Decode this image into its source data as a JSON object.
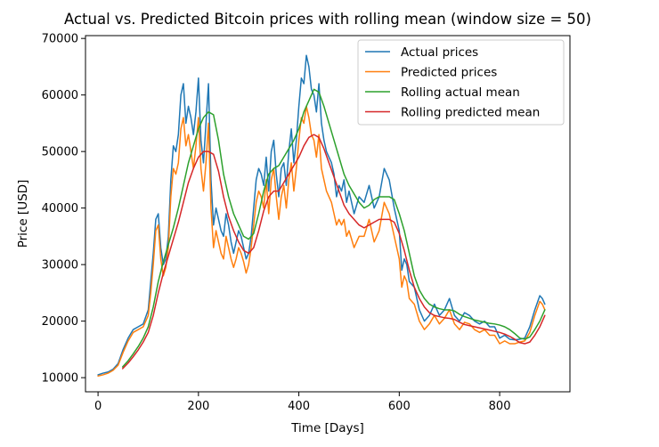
{
  "chart_data": {
    "type": "line",
    "title": "Actual vs. Predicted Bitcoin prices with rolling mean (window size = 50)",
    "xlabel": "Time [Days]",
    "ylabel": "Price [USD]",
    "xlim": [
      -25,
      940
    ],
    "ylim": [
      7500,
      70500
    ],
    "xticks": [
      0,
      200,
      400,
      600,
      800
    ],
    "yticks": [
      10000,
      20000,
      30000,
      40000,
      50000,
      60000,
      70000
    ],
    "grid": false,
    "legend_position": "top-right",
    "series": [
      {
        "name": "Actual prices",
        "color": "#1f77b4",
        "x": [
          0,
          10,
          20,
          30,
          40,
          50,
          60,
          70,
          80,
          90,
          100,
          105,
          110,
          115,
          120,
          125,
          130,
          135,
          140,
          145,
          150,
          155,
          160,
          165,
          170,
          175,
          180,
          185,
          190,
          195,
          200,
          205,
          210,
          215,
          220,
          225,
          230,
          235,
          240,
          245,
          250,
          255,
          260,
          265,
          270,
          275,
          280,
          285,
          290,
          295,
          300,
          305,
          310,
          315,
          320,
          325,
          330,
          335,
          340,
          345,
          350,
          355,
          360,
          365,
          370,
          375,
          380,
          385,
          390,
          395,
          400,
          405,
          410,
          415,
          420,
          425,
          430,
          435,
          440,
          445,
          450,
          455,
          460,
          465,
          470,
          475,
          480,
          485,
          490,
          495,
          500,
          510,
          520,
          530,
          540,
          550,
          560,
          570,
          580,
          590,
          600,
          605,
          610,
          615,
          620,
          630,
          640,
          650,
          660,
          670,
          680,
          690,
          700,
          710,
          720,
          730,
          740,
          750,
          760,
          770,
          780,
          790,
          800,
          810,
          820,
          830,
          840,
          850,
          860,
          870,
          880,
          885,
          890
        ],
        "y": [
          10500,
          10800,
          11000,
          11500,
          12500,
          15000,
          17000,
          18500,
          19000,
          19500,
          22000,
          27000,
          32000,
          38000,
          39000,
          33000,
          30000,
          31000,
          35000,
          45000,
          51000,
          50000,
          53000,
          60000,
          62000,
          55000,
          58000,
          56000,
          53000,
          57000,
          63000,
          52000,
          48000,
          55000,
          62000,
          45000,
          37000,
          40000,
          38000,
          36000,
          35000,
          39000,
          37000,
          34000,
          32000,
          34000,
          36000,
          35000,
          33000,
          31000,
          32000,
          35000,
          40000,
          45000,
          47000,
          46000,
          44000,
          49000,
          43000,
          50000,
          52000,
          46000,
          42000,
          47000,
          48000,
          44000,
          50000,
          54000,
          48000,
          52000,
          58000,
          63000,
          62000,
          67000,
          65000,
          61000,
          60000,
          57000,
          62000,
          55000,
          52000,
          50000,
          49000,
          48000,
          46000,
          42000,
          44000,
          43000,
          45000,
          41000,
          43000,
          39000,
          42000,
          41000,
          44000,
          40000,
          42000,
          47000,
          45000,
          40000,
          36000,
          29000,
          31000,
          30000,
          27000,
          26000,
          22000,
          20000,
          21000,
          23000,
          21000,
          22000,
          24000,
          21000,
          20000,
          21500,
          21000,
          20000,
          19500,
          20000,
          19000,
          19000,
          17000,
          17500,
          16800,
          16700,
          16800,
          17000,
          19000,
          22000,
          24500,
          24000,
          23000
        ]
      },
      {
        "name": "Predicted prices",
        "color": "#ff7f0e",
        "x": [
          0,
          10,
          20,
          30,
          40,
          50,
          60,
          70,
          80,
          90,
          100,
          105,
          110,
          115,
          120,
          125,
          130,
          135,
          140,
          145,
          150,
          155,
          160,
          165,
          170,
          175,
          180,
          185,
          190,
          195,
          200,
          205,
          210,
          215,
          220,
          225,
          230,
          235,
          240,
          245,
          250,
          255,
          260,
          265,
          270,
          275,
          280,
          285,
          290,
          295,
          300,
          305,
          310,
          315,
          320,
          325,
          330,
          335,
          340,
          345,
          350,
          355,
          360,
          365,
          370,
          375,
          380,
          385,
          390,
          395,
          400,
          405,
          410,
          415,
          420,
          425,
          430,
          435,
          440,
          445,
          450,
          455,
          460,
          465,
          470,
          475,
          480,
          485,
          490,
          495,
          500,
          510,
          520,
          530,
          540,
          550,
          560,
          570,
          580,
          590,
          600,
          605,
          610,
          615,
          620,
          630,
          640,
          650,
          660,
          670,
          680,
          690,
          700,
          710,
          720,
          730,
          740,
          750,
          760,
          770,
          780,
          790,
          800,
          810,
          820,
          830,
          840,
          850,
          860,
          870,
          880,
          885,
          890
        ],
        "y": [
          10300,
          10500,
          10800,
          11300,
          12200,
          14500,
          16500,
          18000,
          18500,
          19000,
          21000,
          25000,
          30000,
          36000,
          37000,
          31000,
          28000,
          29500,
          33000,
          42000,
          47000,
          46000,
          48000,
          54000,
          56000,
          51000,
          53000,
          50000,
          47000,
          51000,
          56000,
          47000,
          43000,
          48000,
          55000,
          40000,
          33000,
          36000,
          34000,
          32000,
          31000,
          35000,
          33000,
          31000,
          29500,
          31000,
          33000,
          32000,
          30500,
          28500,
          30000,
          33000,
          37000,
          41000,
          43000,
          42000,
          40000,
          45000,
          39000,
          45000,
          47000,
          42000,
          38000,
          42000,
          44000,
          40000,
          45000,
          48000,
          43000,
          47000,
          52000,
          56000,
          55000,
          58000,
          56000,
          53000,
          52000,
          49000,
          53000,
          47000,
          45000,
          43000,
          42000,
          41000,
          39000,
          37000,
          38000,
          37000,
          38000,
          35000,
          36000,
          33000,
          35000,
          35000,
          38000,
          34000,
          36000,
          41000,
          39000,
          35000,
          31000,
          26000,
          28000,
          27000,
          24000,
          23000,
          20000,
          18500,
          19500,
          21000,
          19500,
          20500,
          22000,
          19500,
          18500,
          19800,
          19500,
          18500,
          18000,
          18500,
          17500,
          17500,
          16000,
          16500,
          16000,
          16000,
          16300,
          16500,
          18000,
          21000,
          23500,
          23000,
          22000
        ]
      },
      {
        "name": "Rolling actual mean",
        "color": "#2ca02c",
        "x": [
          49,
          60,
          70,
          80,
          90,
          100,
          110,
          120,
          130,
          140,
          150,
          160,
          170,
          180,
          190,
          200,
          210,
          220,
          230,
          240,
          250,
          260,
          270,
          280,
          290,
          300,
          310,
          320,
          330,
          340,
          350,
          360,
          370,
          380,
          390,
          400,
          410,
          420,
          430,
          440,
          450,
          460,
          470,
          480,
          490,
          500,
          510,
          520,
          530,
          540,
          550,
          560,
          570,
          580,
          590,
          600,
          610,
          620,
          630,
          640,
          650,
          660,
          670,
          680,
          690,
          700,
          710,
          720,
          730,
          740,
          750,
          760,
          770,
          780,
          790,
          800,
          810,
          820,
          830,
          840,
          850,
          860,
          870,
          880,
          890
        ],
        "y": [
          11900,
          13000,
          14200,
          15500,
          17000,
          19000,
          22500,
          27000,
          30500,
          33500,
          36500,
          40000,
          44000,
          48000,
          51000,
          54000,
          56000,
          57000,
          56500,
          52000,
          46000,
          42000,
          39000,
          37000,
          35000,
          34500,
          35500,
          39000,
          43000,
          46000,
          47000,
          47500,
          49000,
          50500,
          52000,
          54000,
          57000,
          59000,
          61000,
          60500,
          58000,
          55000,
          52000,
          49000,
          46000,
          44000,
          42500,
          41000,
          40000,
          40500,
          41500,
          42000,
          42000,
          42000,
          41500,
          39000,
          36000,
          32000,
          28000,
          25500,
          24000,
          23000,
          22500,
          22200,
          22000,
          22000,
          21800,
          21200,
          20800,
          20500,
          20200,
          20000,
          19800,
          19600,
          19500,
          19300,
          19000,
          18500,
          17800,
          17000,
          16800,
          17200,
          18500,
          20000,
          22000
        ]
      },
      {
        "name": "Rolling predicted mean",
        "color": "#d62728",
        "x": [
          49,
          60,
          70,
          80,
          90,
          100,
          110,
          120,
          130,
          140,
          150,
          160,
          170,
          180,
          190,
          200,
          210,
          220,
          230,
          240,
          250,
          260,
          270,
          280,
          290,
          300,
          310,
          320,
          330,
          340,
          350,
          360,
          370,
          380,
          390,
          400,
          410,
          420,
          430,
          440,
          450,
          460,
          470,
          480,
          490,
          500,
          510,
          520,
          530,
          540,
          550,
          560,
          570,
          580,
          590,
          600,
          610,
          620,
          630,
          640,
          650,
          660,
          670,
          680,
          690,
          700,
          710,
          720,
          730,
          740,
          750,
          760,
          770,
          780,
          790,
          800,
          810,
          820,
          830,
          840,
          850,
          860,
          870,
          880,
          890
        ],
        "y": [
          11600,
          12600,
          13700,
          14900,
          16300,
          18000,
          21000,
          25000,
          28500,
          31500,
          34500,
          37500,
          41000,
          44500,
          47000,
          49000,
          50000,
          50000,
          49500,
          46500,
          42000,
          38500,
          36000,
          34000,
          32500,
          32000,
          33000,
          36000,
          39500,
          42000,
          43000,
          43000,
          44500,
          46000,
          47500,
          49000,
          51000,
          52500,
          53000,
          52500,
          50500,
          48000,
          45500,
          43000,
          40500,
          39000,
          38000,
          37000,
          36500,
          37000,
          37500,
          38000,
          38000,
          38000,
          37500,
          35500,
          32500,
          29000,
          26000,
          24000,
          22500,
          21500,
          21000,
          20800,
          20600,
          20500,
          20300,
          19800,
          19400,
          19200,
          19000,
          18800,
          18600,
          18400,
          18200,
          18000,
          17700,
          17300,
          16800,
          16200,
          16000,
          16300,
          17500,
          19000,
          21000
        ]
      }
    ]
  }
}
